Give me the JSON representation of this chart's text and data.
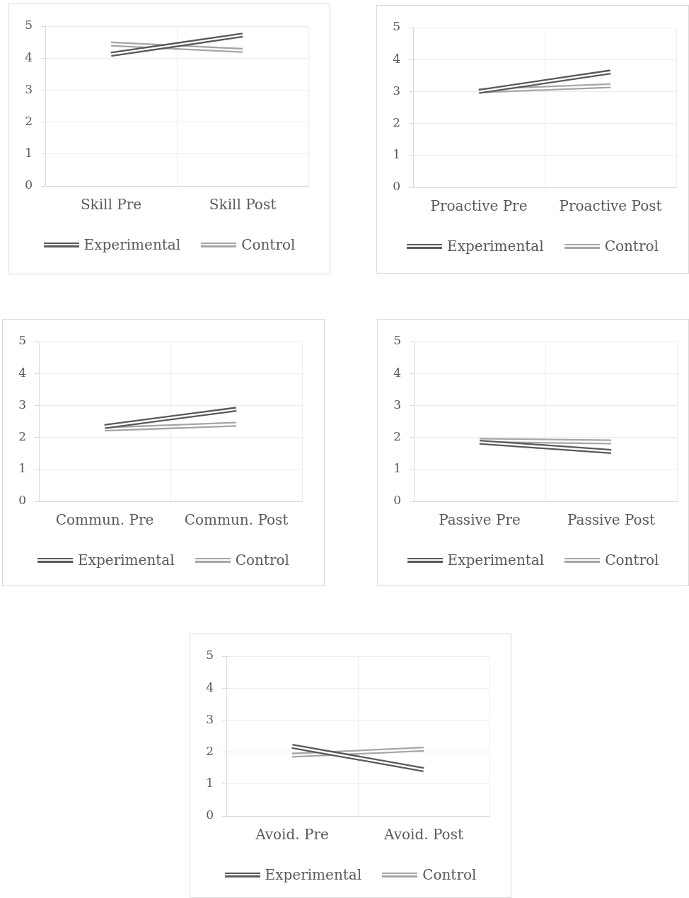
{
  "chart_data": [
    {
      "type": "line",
      "categories": [
        "Skill Pre",
        "Skill Post"
      ],
      "series": [
        {
          "name": "Experimental",
          "color": "#595959",
          "values": [
            4.12,
            4.72
          ]
        },
        {
          "name": "Control",
          "color": "#a6a6a6",
          "values": [
            4.44,
            4.24
          ]
        }
      ],
      "ylim": [
        0,
        5
      ],
      "yticks": [
        0,
        1,
        2,
        3,
        4,
        5
      ],
      "grid": true,
      "legend": "bottom",
      "marker": "none"
    },
    {
      "type": "line",
      "categories": [
        "Proactive Pre",
        "Proactive Post"
      ],
      "series": [
        {
          "name": "Experimental",
          "color": "#595959",
          "values": [
            3.0,
            3.61
          ]
        },
        {
          "name": "Control",
          "color": "#a6a6a6",
          "values": [
            3.02,
            3.18
          ]
        }
      ],
      "ylim": [
        0,
        5
      ],
      "yticks": [
        0,
        1,
        2,
        3,
        4,
        5
      ],
      "grid": true,
      "legend": "bottom",
      "marker": "none"
    },
    {
      "type": "line",
      "categories": [
        "Commun. Pre",
        "Commun. Post"
      ],
      "series": [
        {
          "name": "Experimental",
          "color": "#595959",
          "values": [
            2.34,
            2.88
          ]
        },
        {
          "name": "Control",
          "color": "#a6a6a6",
          "values": [
            2.26,
            2.41
          ]
        }
      ],
      "ylim": [
        0,
        5
      ],
      "yticks": [
        0,
        1,
        2,
        3,
        4,
        5
      ],
      "grid": true,
      "legend": "bottom",
      "marker": "none"
    },
    {
      "type": "line",
      "categories": [
        "Passive Pre",
        "Passive Post"
      ],
      "series": [
        {
          "name": "Experimental",
          "color": "#595959",
          "values": [
            1.85,
            1.56
          ]
        },
        {
          "name": "Control",
          "color": "#a6a6a6",
          "values": [
            1.91,
            1.86
          ]
        }
      ],
      "ylim": [
        0,
        5
      ],
      "yticks": [
        0,
        1,
        2,
        3,
        4,
        5
      ],
      "grid": true,
      "legend": "bottom",
      "marker": "none"
    },
    {
      "type": "line",
      "categories": [
        "Avoid. Pre",
        "Avoid. Post"
      ],
      "series": [
        {
          "name": "Experimental",
          "color": "#595959",
          "values": [
            2.18,
            1.45
          ]
        },
        {
          "name": "Control",
          "color": "#a6a6a6",
          "values": [
            1.9,
            2.09
          ]
        }
      ],
      "ylim": [
        0,
        5
      ],
      "yticks": [
        0,
        1,
        2,
        3,
        4,
        5
      ],
      "grid": true,
      "legend": "bottom",
      "marker": "none"
    }
  ]
}
